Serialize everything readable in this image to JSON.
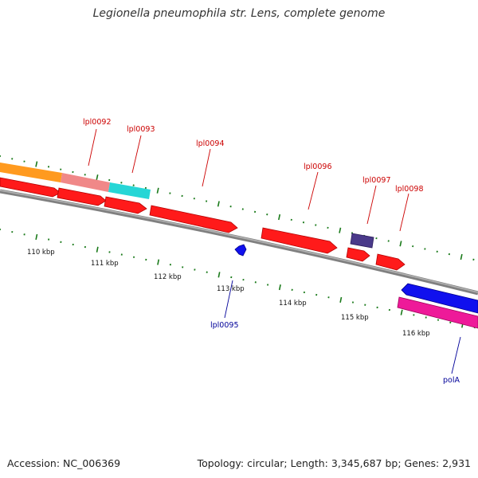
{
  "title": "Legionella pneumophila str. Lens, complete genome",
  "footer": {
    "accession": "Accession: NC_006369",
    "summary": "Topology: circular; Length: 3,345,687 bp; Genes: 2,931"
  },
  "colors": {
    "forward_cds": "#ff1a1a",
    "reverse_cds": "#1010ee",
    "tick": "#1a7a1a",
    "backbone": "#808080",
    "label_forward": "#cc0000",
    "label_reverse": "#000099"
  },
  "scale": {
    "unit": "kbp",
    "labels": [
      "110 kbp",
      "111 kbp",
      "112 kbp",
      "113 kbp",
      "114 kbp",
      "115 kbp",
      "116 kbp"
    ]
  },
  "feature_labels": {
    "lpl0092": "lpl0092",
    "lpl0093": "lpl0093",
    "lpl0094": "lpl0094",
    "lpl0095": "lpl0095",
    "lpl0096": "lpl0096",
    "lpl0097": "lpl0097",
    "lpl0098": "lpl0098",
    "polA": "polA"
  }
}
